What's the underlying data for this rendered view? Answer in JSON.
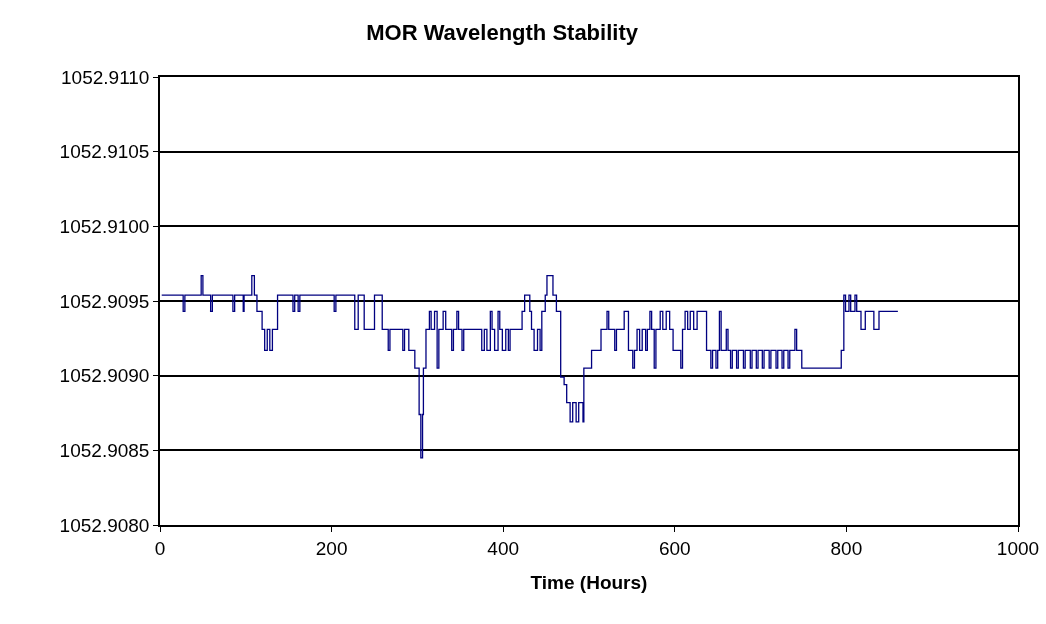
{
  "chart_data": {
    "type": "step",
    "title": "MOR Wavelength Stability",
    "xlabel": "Time (Hours)",
    "x": [
      2,
      27,
      29,
      48,
      50,
      59,
      61,
      85,
      87,
      97,
      98,
      107,
      110,
      113,
      119,
      122,
      125,
      128,
      131,
      137,
      155,
      157,
      161,
      163,
      203,
      205,
      227,
      231,
      238,
      250,
      259,
      266,
      268,
      283,
      285,
      290,
      297,
      302,
      304,
      306,
      307,
      310,
      314,
      316,
      320,
      323,
      325,
      330,
      333,
      340,
      342,
      346,
      348,
      352,
      354,
      375,
      378,
      381,
      385,
      387,
      390,
      394,
      396,
      399,
      403,
      406,
      408,
      422,
      425,
      431,
      433,
      436,
      440,
      443,
      445,
      449,
      451,
      458,
      462,
      467,
      471,
      474,
      478,
      481,
      485,
      488,
      493,
      494,
      503,
      514,
      521,
      523,
      530,
      532,
      541,
      546,
      551,
      553,
      556,
      559,
      562,
      566,
      568,
      571,
      573,
      576,
      578,
      583,
      586,
      590,
      594,
      598,
      607,
      609,
      612,
      615,
      618,
      622,
      626,
      637,
      642,
      644,
      648,
      650,
      652,
      654,
      660,
      662,
      665,
      667,
      672,
      674,
      680,
      682,
      688,
      690,
      695,
      697,
      702,
      704,
      710,
      712,
      718,
      720,
      725,
      727,
      732,
      734,
      740,
      742,
      748,
      794,
      797,
      799,
      803,
      805,
      810,
      812,
      817,
      822,
      832,
      838,
      860
    ],
    "series": [
      {
        "color": "#000080",
        "values": [
          1052.90954,
          1052.90943,
          1052.90954,
          1052.90967,
          1052.90954,
          1052.90943,
          1052.90954,
          1052.90943,
          1052.90954,
          1052.90943,
          1052.90954,
          1052.90967,
          1052.90954,
          1052.90943,
          1052.90931,
          1052.90917,
          1052.90931,
          1052.90917,
          1052.90931,
          1052.90954,
          1052.90943,
          1052.90954,
          1052.90943,
          1052.90954,
          1052.90943,
          1052.90954,
          1052.90931,
          1052.90954,
          1052.90931,
          1052.90954,
          1052.90931,
          1052.90917,
          1052.90931,
          1052.90917,
          1052.90931,
          1052.90917,
          1052.90905,
          1052.90874,
          1052.90845,
          1052.90874,
          1052.90905,
          1052.90931,
          1052.90943,
          1052.90931,
          1052.90943,
          1052.90905,
          1052.90931,
          1052.90943,
          1052.90931,
          1052.90917,
          1052.90931,
          1052.90943,
          1052.90931,
          1052.90917,
          1052.90931,
          1052.90917,
          1052.90931,
          1052.90917,
          1052.90943,
          1052.90931,
          1052.90917,
          1052.90943,
          1052.90931,
          1052.90917,
          1052.90931,
          1052.90917,
          1052.90931,
          1052.90943,
          1052.90954,
          1052.90943,
          1052.90931,
          1052.90917,
          1052.90931,
          1052.90917,
          1052.90943,
          1052.90954,
          1052.90967,
          1052.90954,
          1052.90943,
          1052.90899,
          1052.90894,
          1052.90882,
          1052.90869,
          1052.90882,
          1052.90869,
          1052.90882,
          1052.90869,
          1052.90905,
          1052.90917,
          1052.90931,
          1052.90943,
          1052.90931,
          1052.90917,
          1052.90931,
          1052.90943,
          1052.90917,
          1052.90905,
          1052.90917,
          1052.90931,
          1052.90917,
          1052.90931,
          1052.90917,
          1052.90931,
          1052.90943,
          1052.90931,
          1052.90905,
          1052.90931,
          1052.90943,
          1052.90931,
          1052.90943,
          1052.90931,
          1052.90917,
          1052.90905,
          1052.90931,
          1052.90943,
          1052.90931,
          1052.90943,
          1052.90931,
          1052.90943,
          1052.90917,
          1052.90905,
          1052.90917,
          1052.90905,
          1052.90917,
          1052.90943,
          1052.90917,
          1052.90931,
          1052.90917,
          1052.90905,
          1052.90917,
          1052.90905,
          1052.90917,
          1052.90905,
          1052.90917,
          1052.90905,
          1052.90917,
          1052.90905,
          1052.90917,
          1052.90905,
          1052.90917,
          1052.90905,
          1052.90917,
          1052.90905,
          1052.90917,
          1052.90905,
          1052.90917,
          1052.90905,
          1052.90917,
          1052.90931,
          1052.90917,
          1052.90905,
          1052.90917,
          1052.90954,
          1052.90943,
          1052.90954,
          1052.90943,
          1052.90954,
          1052.90943,
          1052.90931,
          1052.90943,
          1052.90931,
          1052.90943,
          1052.90943
        ]
      }
    ],
    "xlim": [
      0,
      1000
    ],
    "xticks": [
      0,
      200,
      400,
      600,
      800,
      1000
    ],
    "ylim": [
      1052.908,
      1052.911
    ],
    "yticks": [
      {
        "value": 1052.908,
        "label": "1052.9080"
      },
      {
        "value": 1052.9085,
        "label": "1052.9085"
      },
      {
        "value": 1052.909,
        "label": "1052.9090"
      },
      {
        "value": 1052.9095,
        "label": "1052.9095"
      },
      {
        "value": 1052.91,
        "label": "1052.9100"
      },
      {
        "value": 1052.9105,
        "label": "1052.9105"
      },
      {
        "value": 1052.911,
        "label": "1052.9110"
      }
    ],
    "grid": "y",
    "marker": "none",
    "line_style": "solid"
  }
}
